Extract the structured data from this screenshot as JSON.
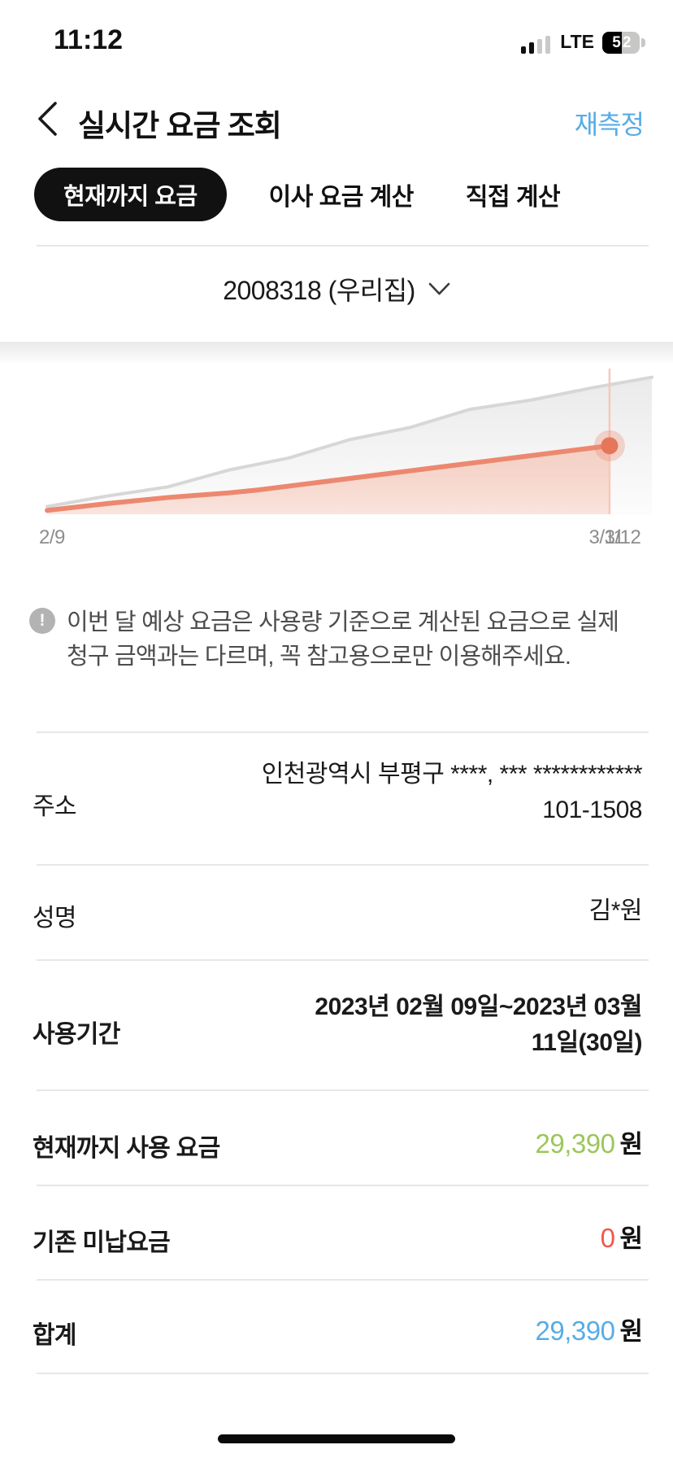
{
  "status_bar": {
    "time": "11:12",
    "network": "LTE",
    "battery_left_digit": "5",
    "battery_right_digit": "2"
  },
  "header": {
    "title": "실시간 요금 조회",
    "remeasure_label": "재측정",
    "remeasure_color": "#57ace6"
  },
  "tabs": [
    {
      "label": "현재까지 요금",
      "active": true
    },
    {
      "label": "이사 요금 계산",
      "active": false
    },
    {
      "label": "직접 계산",
      "active": false
    }
  ],
  "meter_selector": {
    "value": "2008318 (우리집)"
  },
  "chart_data": {
    "type": "area",
    "title": "",
    "x_tick_labels": [
      "2/9",
      "3/11",
      "3/12"
    ],
    "x_range": [
      "2/9",
      "3/12"
    ],
    "ylim": [
      0,
      100
    ],
    "grid": false,
    "legend": "none",
    "series": [
      {
        "name": "upper-reference-usage",
        "color": "#d7d7d7",
        "x_frac": [
          0,
          0.1,
          0.2,
          0.3,
          0.4,
          0.5,
          0.6,
          0.7,
          0.8,
          0.9,
          1.0
        ],
        "y": [
          5,
          12,
          18,
          29,
          37,
          49,
          57,
          69,
          75,
          83,
          90
        ]
      },
      {
        "name": "current-cumulative-charge",
        "color": "#ec8870",
        "x_frac": [
          0,
          0.1,
          0.2,
          0.3,
          0.35,
          0.45,
          0.55,
          0.65,
          0.75,
          0.85,
          0.93
        ],
        "y": [
          2.5,
          7,
          11,
          14,
          16,
          21,
          26,
          31,
          36,
          41,
          45
        ]
      }
    ],
    "cursor_x_frac": 0.93,
    "cursor_color": "#f7c7ba",
    "marker": {
      "x_frac": 0.93,
      "y": 45,
      "color": "#e5765a",
      "halo_color": "#ec8870"
    }
  },
  "notice": {
    "icon": "!",
    "line1": "이번 달 예상 요금은 사용량 기준으로 계산된 요금으로 실제",
    "line2": "청구 금액과는 다르며, 꼭 참고용으로만 이용해주세요."
  },
  "rows": [
    {
      "label": "주소",
      "value_line1": "인천광역시 부평구 ****, *** ************",
      "value_line2": "101-1508"
    },
    {
      "label": "성명",
      "value_line1": "김*원"
    },
    {
      "label": "사용기간",
      "value_line1": "2023년 02월 09일~2023년 03월",
      "value_line2": "11일(30일)"
    },
    {
      "label": "현재까지 사용 요금",
      "amount": "29,390",
      "unit": "원",
      "amount_color": "#9cc65a"
    },
    {
      "label": "기존 미납요금",
      "amount": "0",
      "unit": "원",
      "amount_color": "#f1574c"
    },
    {
      "label": "합계",
      "amount": "29,390",
      "unit": "원",
      "amount_color": "#58ace5"
    }
  ]
}
